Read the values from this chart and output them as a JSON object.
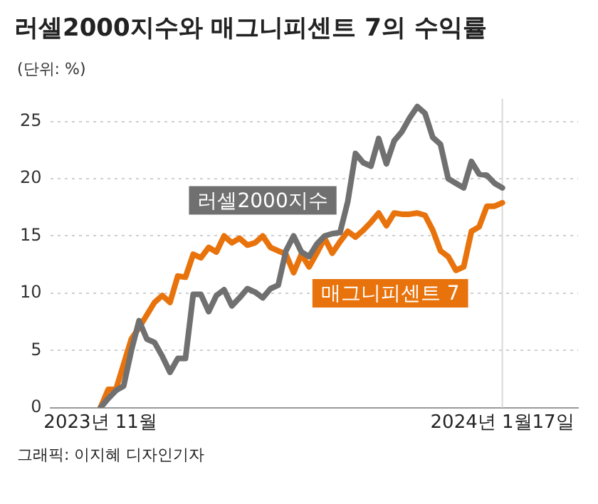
{
  "chart_data": {
    "type": "line",
    "title": "러셀2000지수와 매그니피센트 7의 수익률",
    "ylabel": "(단위: %)",
    "categories": [
      "2023년 11월",
      null,
      null,
      null,
      null,
      null,
      null,
      null,
      null,
      null,
      null,
      null,
      null,
      null,
      null,
      null,
      null,
      null,
      null,
      null,
      null,
      null,
      null,
      null,
      null,
      null,
      null,
      null,
      null,
      null,
      null,
      null,
      null,
      null,
      null,
      null,
      null,
      null,
      null,
      null,
      null,
      null,
      null,
      null,
      null,
      null,
      null,
      null,
      null,
      null,
      null,
      null,
      "2024년 1월17일"
    ],
    "series": [
      {
        "name": "러셀2000지수",
        "color": "#707070",
        "values": [
          0,
          0.8,
          1.5,
          1.9,
          5,
          7.6,
          6.0,
          5.7,
          4.5,
          3.1,
          4.3,
          4.3,
          9.9,
          9.9,
          8.4,
          9.8,
          10.3,
          8.9,
          9.6,
          10.4,
          10.1,
          9.6,
          10.4,
          10.7,
          13.7,
          15.0,
          13.6,
          13.2,
          14.3,
          15.0,
          15.2,
          15.3,
          18,
          22.2,
          21.4,
          21.1,
          23.5,
          21.3,
          23.3,
          24.1,
          25.3,
          26.3,
          25.7,
          23.6,
          23.0,
          20.0,
          19.6,
          19.2,
          21.5,
          20.4,
          20.3,
          19.6,
          19.2
        ]
      },
      {
        "name": "매그니피센트 7",
        "color": "#e8730c",
        "values": [
          0,
          1.6,
          1.6,
          3.8,
          6.0,
          7.0,
          8.1,
          9.2,
          9.8,
          9.2,
          11.5,
          11.4,
          13.4,
          13.1,
          14.0,
          13.6,
          15.0,
          14.4,
          14.8,
          14.2,
          14.4,
          15.0,
          14.0,
          13.7,
          13.4,
          11.8,
          13.4,
          12.3,
          13.5,
          14.8,
          13.5,
          14.5,
          15.4,
          14.9,
          15.5,
          16.2,
          17.0,
          15.9,
          17.0,
          16.9,
          16.9,
          17.0,
          16.8,
          15.5,
          13.7,
          13.2,
          12.0,
          12.3,
          15.4,
          15.8,
          17.6,
          17.6,
          17.9
        ]
      }
    ],
    "ylim": [
      0,
      27
    ],
    "yticks": [
      0,
      5,
      10,
      15,
      20,
      25
    ],
    "grid": "y",
    "legend": false,
    "ref_lines": [
      {
        "axis": "x",
        "value": "2024년 1월17일",
        "color": "#d9d9d9"
      }
    ],
    "annotations": [
      "그래픽: 이지혜 디자인기자"
    ]
  }
}
